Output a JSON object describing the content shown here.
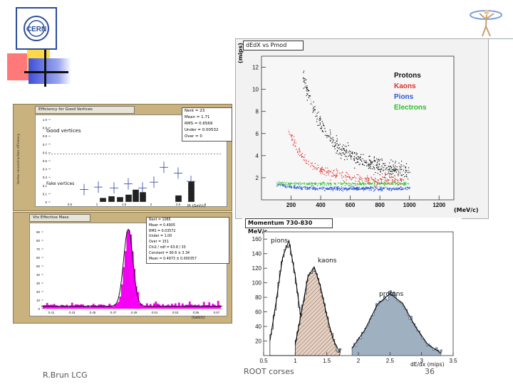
{
  "footer": {
    "author": "R.Brun LCG",
    "title": "ROOT corses",
    "page": "36"
  },
  "logo": {
    "text": "CERN"
  },
  "left_top_plot": {
    "title": "Efficiency for Good Vertices",
    "stats": [
      "Nent = 23",
      "Mean = 1.71",
      "RMS = 0.6569",
      "Under = 0.00532",
      "Over = 0"
    ],
    "label_good": "Good vertices",
    "label_fake": "Fake vertices",
    "xlabel": "Pt (GeV/c)",
    "ylabel": "Vertex reconstruction efficiency",
    "yticks": [
      "1.0",
      "0.9",
      "0.8",
      "0.7",
      "0.6",
      "0.5",
      "0.4",
      "0.3",
      "0.2",
      "0.1",
      "0"
    ],
    "xticks": [
      "0.5",
      "1",
      "1.5",
      "2",
      "2.5",
      "3"
    ]
  },
  "left_bottom_plot": {
    "title": "Vtx Effective Mass",
    "stats": [
      "Nent = 1065",
      "Mean = 0.4905",
      "RMS = 0.03572",
      "Under = 1.00",
      "Over = 151",
      "Chi2 / ndf = 63.8 / 33",
      "Constant = 90.6 ± 3.34",
      "Mean = 0.4973 ± 0.000357"
    ],
    "yticks": [
      "90",
      "80",
      "70",
      "60",
      "50",
      "40",
      "30",
      "20",
      "10",
      "0"
    ],
    "xticks": [
      "0.41",
      "0.43",
      "0.45",
      "0.47",
      "0.49",
      "0.51",
      "0.53",
      "0.55",
      "0.57"
    ],
    "xlabel": "(GeV/c)"
  },
  "right_top_plot": {
    "title": "dEdX vs Pmod",
    "ylabel": "(mips)",
    "yticks": [
      "12",
      "10",
      "8",
      "6",
      "4",
      "2"
    ],
    "xticks": [
      "200",
      "400",
      "600",
      "800",
      "1000",
      "1200"
    ],
    "xlabel": "(MeV/c)",
    "legend": [
      {
        "name": "Protons",
        "color": "#111111"
      },
      {
        "name": "Kaons",
        "color": "#e0302c"
      },
      {
        "name": "Pions",
        "color": "#2a54d8"
      },
      {
        "name": "Electrons",
        "color": "#25c125"
      }
    ]
  },
  "right_bottom_plot": {
    "title": "Momentum 730-830 MeV/c",
    "label_pions": "pions",
    "label_kaons": "kaons",
    "label_protons": "protons",
    "yticks": [
      "160",
      "140",
      "120",
      "100",
      "80",
      "60",
      "40",
      "20"
    ],
    "xticks": [
      "0.5",
      "1",
      "1.5",
      "2",
      "2.5",
      "3",
      "3.5"
    ],
    "xlabel": "dE/dx (mips)"
  },
  "chart_data": [
    {
      "type": "scatter",
      "title": "dEdX vs Pmod",
      "xlabel": "(MeV/c)",
      "ylabel": "(mips)",
      "xlim": [
        0,
        1300
      ],
      "ylim": [
        0,
        13
      ],
      "series": [
        {
          "name": "Protons",
          "x": [
            280,
            320,
            360,
            400,
            450,
            500,
            560,
            620,
            700,
            780,
            860,
            940,
            1000
          ],
          "y": [
            11.0,
            9.5,
            8.0,
            6.8,
            5.8,
            5.0,
            4.4,
            3.9,
            3.4,
            3.1,
            2.8,
            2.6,
            2.4
          ]
        },
        {
          "name": "Kaons",
          "x": [
            180,
            240,
            300,
            360,
            420,
            500,
            580,
            660,
            760,
            860,
            960
          ],
          "y": [
            6.5,
            4.6,
            3.6,
            3.0,
            2.6,
            2.3,
            2.1,
            1.95,
            1.85,
            1.8,
            1.75
          ]
        },
        {
          "name": "Pions",
          "x": [
            100,
            200,
            300,
            400,
            500,
            600,
            700,
            800,
            900,
            1000
          ],
          "y": [
            1.4,
            1.2,
            1.1,
            1.05,
            1.05,
            1.05,
            1.05,
            1.05,
            1.05,
            1.05
          ]
        },
        {
          "name": "Electrons",
          "x": [
            100,
            200,
            300,
            400,
            500,
            600,
            700,
            800,
            900,
            1000
          ],
          "y": [
            1.55,
            1.5,
            1.5,
            1.5,
            1.5,
            1.5,
            1.5,
            1.5,
            1.5,
            1.5
          ]
        }
      ]
    },
    {
      "type": "area",
      "title": "Momentum 730-830 MeV/c",
      "xlabel": "dE/dx (mips)",
      "xlim": [
        0.5,
        3.5
      ],
      "ylim": [
        0,
        170
      ],
      "series": [
        {
          "name": "pions",
          "x": [
            0.6,
            0.7,
            0.8,
            0.9,
            1.0,
            1.1,
            1.2
          ],
          "y": [
            20,
            75,
            135,
            158,
            110,
            45,
            8
          ]
        },
        {
          "name": "kaons",
          "x": [
            1.0,
            1.1,
            1.2,
            1.3,
            1.4,
            1.5,
            1.6,
            1.7
          ],
          "y": [
            15,
            60,
            108,
            122,
            95,
            55,
            22,
            5
          ]
        },
        {
          "name": "protons",
          "x": [
            1.9,
            2.1,
            2.3,
            2.5,
            2.7,
            2.9,
            3.1,
            3.3
          ],
          "y": [
            10,
            35,
            70,
            85,
            72,
            40,
            15,
            4
          ]
        }
      ]
    },
    {
      "type": "bar",
      "title": "Vtx Effective Mass",
      "xlabel": "(GeV/c)",
      "categories": [
        "0.45",
        "0.47",
        "0.48",
        "0.49",
        "0.50",
        "0.51",
        "0.52",
        "0.55"
      ],
      "values": [
        3,
        8,
        40,
        90,
        45,
        10,
        5,
        3
      ],
      "ylim": [
        0,
        95
      ]
    }
  ]
}
